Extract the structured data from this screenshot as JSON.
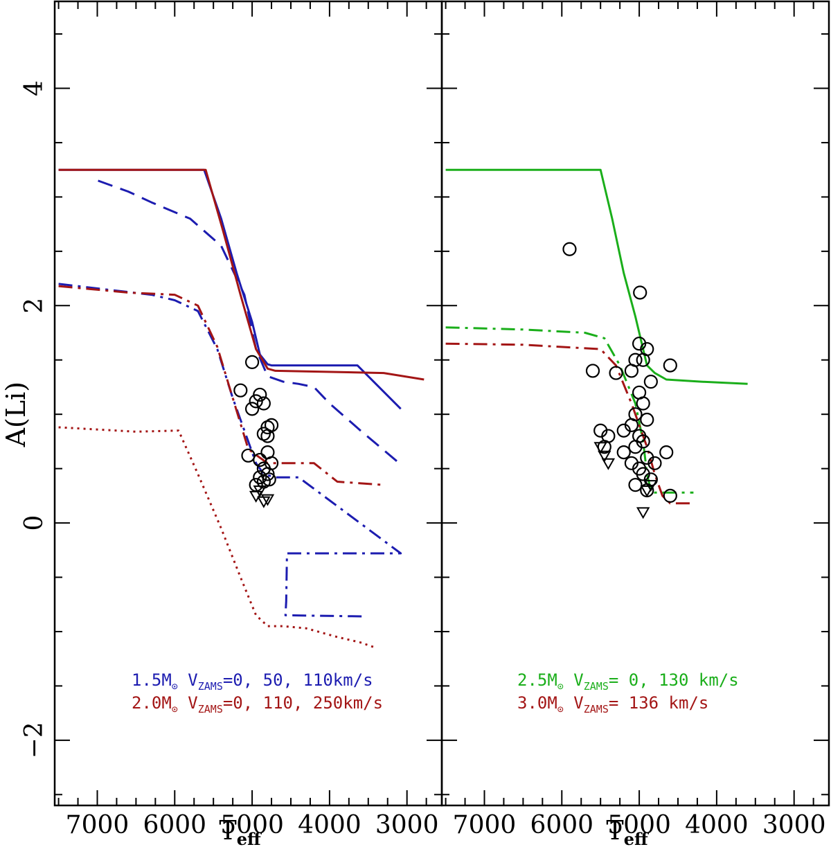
{
  "chart_data": [
    {
      "type": "line",
      "panel": "left",
      "xlabel": "T",
      "xlabel_sub": "eff",
      "ylabel": "A(Li)",
      "xlim": [
        7550,
        2550
      ],
      "ylim": [
        -2.6,
        4.8
      ],
      "xticks": [
        7000,
        6000,
        5000,
        4000,
        3000
      ],
      "yticks": [
        -2,
        0,
        2,
        4
      ],
      "series": [
        {
          "name": "1.5Msun V=0",
          "color": "#1c1cb0",
          "style": "solid",
          "x": [
            7500,
            5620,
            5400,
            5200,
            5000,
            4900,
            4800,
            4750,
            3640,
            3080
          ],
          "y": [
            3.25,
            3.25,
            2.8,
            2.3,
            1.85,
            1.55,
            1.46,
            1.45,
            1.45,
            1.05
          ]
        },
        {
          "name": "1.5Msun V=50",
          "color": "#1c1cb0",
          "style": "dashed",
          "x": [
            6990,
            6600,
            6300,
            5800,
            5400,
            5100,
            4950,
            4800,
            4600,
            4400,
            4200,
            4000,
            3600,
            3100
          ],
          "y": [
            3.15,
            3.05,
            2.95,
            2.8,
            2.55,
            2.1,
            1.6,
            1.35,
            1.3,
            1.28,
            1.25,
            1.1,
            0.85,
            0.55
          ]
        },
        {
          "name": "1.5Msun V=110",
          "color": "#1c1cb0",
          "style": "dashdot",
          "x": [
            7500,
            6900,
            6300,
            6000,
            5700,
            5450,
            5250,
            5050,
            4950,
            4850,
            4700,
            4400,
            3080,
            4550,
            4560,
            4570,
            3570
          ],
          "y": [
            2.2,
            2.15,
            2.1,
            2.05,
            1.95,
            1.6,
            1.15,
            0.75,
            0.55,
            0.45,
            0.42,
            0.42,
            -0.28,
            -0.28,
            -0.72,
            -0.85,
            -0.86
          ]
        },
        {
          "name": "2.0Msun V=0",
          "color": "#a31515",
          "style": "solid",
          "x": [
            7500,
            5600,
            5380,
            5150,
            4950,
            4800,
            4700,
            3300,
            2780
          ],
          "y": [
            3.25,
            3.25,
            2.7,
            2.1,
            1.6,
            1.42,
            1.4,
            1.38,
            1.32
          ]
        },
        {
          "name": "2.0Msun V=110",
          "color": "#a31515",
          "style": "dashdot",
          "x": [
            7500,
            6600,
            6000,
            5700,
            5450,
            5250,
            5050,
            4900,
            4800,
            4200,
            3900,
            3300
          ],
          "y": [
            2.18,
            2.12,
            2.1,
            2.0,
            1.62,
            1.15,
            0.68,
            0.6,
            0.55,
            0.55,
            0.38,
            0.35
          ]
        },
        {
          "name": "2.0Msun V=250",
          "color": "#a31515",
          "style": "dotted",
          "x": [
            7500,
            6500,
            5950,
            5700,
            5400,
            5150,
            4950,
            4800,
            4600,
            4300,
            3900,
            3600,
            3400
          ],
          "y": [
            0.88,
            0.84,
            0.85,
            0.45,
            -0.05,
            -0.5,
            -0.85,
            -0.95,
            -0.95,
            -0.97,
            -1.05,
            -1.1,
            -1.15
          ]
        }
      ],
      "circles": [
        [
          5000,
          1.48
        ],
        [
          5150,
          1.22
        ],
        [
          4950,
          1.12
        ],
        [
          4900,
          1.18
        ],
        [
          4850,
          1.1
        ],
        [
          5000,
          1.05
        ],
        [
          4800,
          0.88
        ],
        [
          4750,
          0.9
        ],
        [
          4850,
          0.82
        ],
        [
          4800,
          0.8
        ],
        [
          5050,
          0.62
        ],
        [
          4900,
          0.58
        ],
        [
          4850,
          0.5
        ],
        [
          4800,
          0.45
        ],
        [
          4780,
          0.4
        ],
        [
          4850,
          0.38
        ],
        [
          4900,
          0.42
        ],
        [
          4950,
          0.35
        ],
        [
          4750,
          0.55
        ],
        [
          4800,
          0.65
        ]
      ],
      "triangles": [
        [
          4950,
          0.25
        ],
        [
          4850,
          0.2
        ],
        [
          4900,
          0.3
        ],
        [
          4800,
          0.22
        ]
      ],
      "legend": [
        {
          "mass": "1.5M",
          "vlabel": "V",
          "vsub": "ZAMS",
          "values": "=0, 50, 110km/s",
          "color": "#1c1cb0"
        },
        {
          "mass": "2.0M",
          "vlabel": "V",
          "vsub": "ZAMS",
          "values": "=0, 110, 250km/s",
          "color": "#a31515"
        }
      ]
    },
    {
      "type": "line",
      "panel": "right",
      "xlabel": "T",
      "xlabel_sub": "eff",
      "ylabel": "",
      "xlim": [
        7550,
        2550
      ],
      "ylim": [
        -2.6,
        4.8
      ],
      "xticks": [
        7000,
        6000,
        5000,
        4000,
        3000
      ],
      "yticks": [
        -2,
        0,
        2,
        4
      ],
      "series": [
        {
          "name": "2.5Msun V=0",
          "color": "#1aae1a",
          "style": "solid",
          "x": [
            7500,
            5500,
            5350,
            5200,
            5050,
            4950,
            4900,
            4800,
            4650,
            4200,
            3600
          ],
          "y": [
            3.25,
            3.25,
            2.8,
            2.3,
            1.9,
            1.6,
            1.45,
            1.38,
            1.32,
            1.3,
            1.28
          ]
        },
        {
          "name": "2.5Msun V=130",
          "color": "#1aae1a",
          "style": "dashdot",
          "x": [
            7500,
            6500,
            5700,
            5450,
            5250,
            5050,
            4950,
            4900,
            4850,
            4800,
            4500,
            4300
          ],
          "y": [
            1.8,
            1.78,
            1.75,
            1.7,
            1.45,
            1.1,
            0.75,
            0.45,
            0.3,
            0.28,
            0.28,
            0.28
          ]
        },
        {
          "name": "3.0Msun V=136",
          "color": "#a31515",
          "style": "dashdot",
          "x": [
            7500,
            6500,
            5500,
            5300,
            5100,
            4900,
            4800,
            4700,
            4600,
            4300
          ],
          "y": [
            1.65,
            1.64,
            1.6,
            1.45,
            1.1,
            0.7,
            0.45,
            0.25,
            0.18,
            0.18
          ]
        }
      ],
      "circles": [
        [
          5900,
          2.52
        ],
        [
          4990,
          2.12
        ],
        [
          5600,
          1.4
        ],
        [
          5300,
          1.38
        ],
        [
          4600,
          1.45
        ],
        [
          5000,
          1.65
        ],
        [
          4900,
          1.6
        ],
        [
          5050,
          1.5
        ],
        [
          4950,
          1.5
        ],
        [
          5100,
          1.4
        ],
        [
          4850,
          1.3
        ],
        [
          5000,
          1.2
        ],
        [
          4950,
          1.1
        ],
        [
          5050,
          1.0
        ],
        [
          4900,
          0.95
        ],
        [
          5100,
          0.9
        ],
        [
          5200,
          0.85
        ],
        [
          5400,
          0.8
        ],
        [
          5450,
          0.7
        ],
        [
          5000,
          0.8
        ],
        [
          4950,
          0.75
        ],
        [
          5050,
          0.7
        ],
        [
          4900,
          0.6
        ],
        [
          5000,
          0.5
        ],
        [
          4950,
          0.45
        ],
        [
          4850,
          0.4
        ],
        [
          5100,
          0.55
        ],
        [
          4800,
          0.55
        ],
        [
          4650,
          0.65
        ],
        [
          4900,
          0.3
        ],
        [
          4600,
          0.25
        ],
        [
          5050,
          0.35
        ],
        [
          5200,
          0.65
        ],
        [
          5500,
          0.85
        ]
      ],
      "triangles": [
        [
          5500,
          0.7
        ],
        [
          5450,
          0.62
        ],
        [
          5400,
          0.55
        ],
        [
          4950,
          0.1
        ],
        [
          4900,
          0.3
        ],
        [
          4850,
          0.35
        ]
      ],
      "legend": [
        {
          "mass": "2.5M",
          "vlabel": "V",
          "vsub": "ZAMS",
          "values": "= 0, 130 km/s",
          "color": "#1aae1a"
        },
        {
          "mass": "3.0M",
          "vlabel": "V",
          "vsub": "ZAMS",
          "values": "= 136 km/s",
          "color": "#a31515"
        }
      ]
    }
  ]
}
